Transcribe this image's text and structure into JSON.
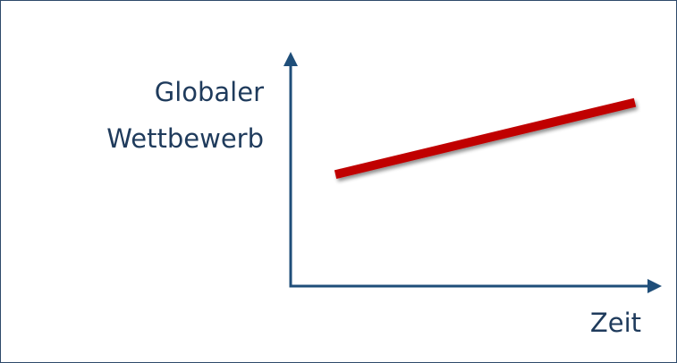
{
  "chart_data": {
    "type": "line",
    "title": "",
    "ylabel_lines": [
      "Globaler",
      "Wettbewerb"
    ],
    "xlabel": "Zeit",
    "grid": false,
    "legend": "none",
    "xlim": [
      0,
      1
    ],
    "ylim": [
      0,
      1
    ],
    "series": [
      {
        "x": [
          0.13,
          1.0
        ],
        "y": [
          0.48,
          0.79
        ]
      }
    ],
    "colors": {
      "axes": "#1f4e79",
      "series": "#c00000",
      "series_shadow": "#8a8a8a",
      "text": "#1f3b5c",
      "border": "#2e4a6b"
    }
  }
}
